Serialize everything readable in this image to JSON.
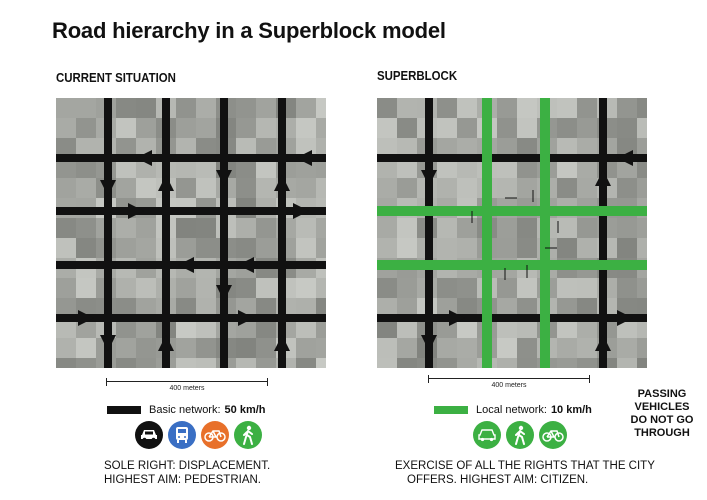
{
  "title": "Road hierarchy in a Superblock model",
  "left": {
    "heading": "CURRENT SITUATION",
    "scale": "400 meters",
    "legend_label": "Basic network:",
    "legend_speed": "50 km/h",
    "legend_color": "#111111",
    "modes": [
      "car-icon",
      "bus-icon",
      "bike-icon",
      "pedestrian-icon"
    ],
    "caption_line1": "SOLE RIGHT: DISPLACEMENT.",
    "caption_line2": "HIGHEST AIM: PEDESTRIAN."
  },
  "right": {
    "heading": "SUPERBLOCK",
    "scale": "400 meters",
    "legend_label": "Local network:",
    "legend_speed": "10 km/h",
    "legend_color": "#3cb043",
    "modes": [
      "car-icon",
      "pedestrian-icon",
      "bike-icon"
    ],
    "caption_line1": "EXERCISE OF ALL THE RIGHTS THAT THE CITY",
    "caption_line2": "OFFERS. HIGHEST AIM: CITIZEN.",
    "passing_1": "PASSING",
    "passing_2": "VEHICLES",
    "passing_3": "DO NOT GO",
    "passing_4": "THROUGH"
  },
  "colors": {
    "car": "#111111",
    "bus": "#3a6fc4",
    "bike": "#e8702a",
    "walk": "#3cb043",
    "green": "#3cb043"
  }
}
